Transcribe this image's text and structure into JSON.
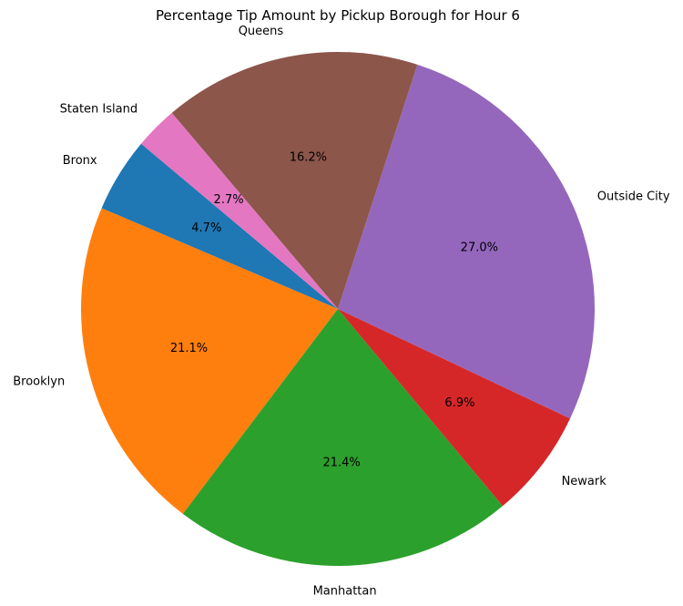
{
  "chart_data": {
    "type": "pie",
    "title": "Percentage Tip Amount by Pickup Borough for Hour 6",
    "start_angle_deg": 140,
    "direction": "counterclockwise",
    "slices": [
      {
        "label": "Bronx",
        "value": 4.7,
        "pct_label": "4.7%",
        "color": "#1f77b4"
      },
      {
        "label": "Brooklyn",
        "value": 21.1,
        "pct_label": "21.1%",
        "color": "#ff7f0e"
      },
      {
        "label": "Manhattan",
        "value": 21.4,
        "pct_label": "21.4%",
        "color": "#2ca02c"
      },
      {
        "label": "Newark",
        "value": 6.9,
        "pct_label": "6.9%",
        "color": "#d62728"
      },
      {
        "label": "Outside City",
        "value": 27.0,
        "pct_label": "27.0%",
        "color": "#9467bd"
      },
      {
        "label": "Queens",
        "value": 16.2,
        "pct_label": "16.2%",
        "color": "#8c564b"
      },
      {
        "label": "Staten Island",
        "value": 2.7,
        "pct_label": "2.7%",
        "color": "#e377c2"
      }
    ]
  }
}
